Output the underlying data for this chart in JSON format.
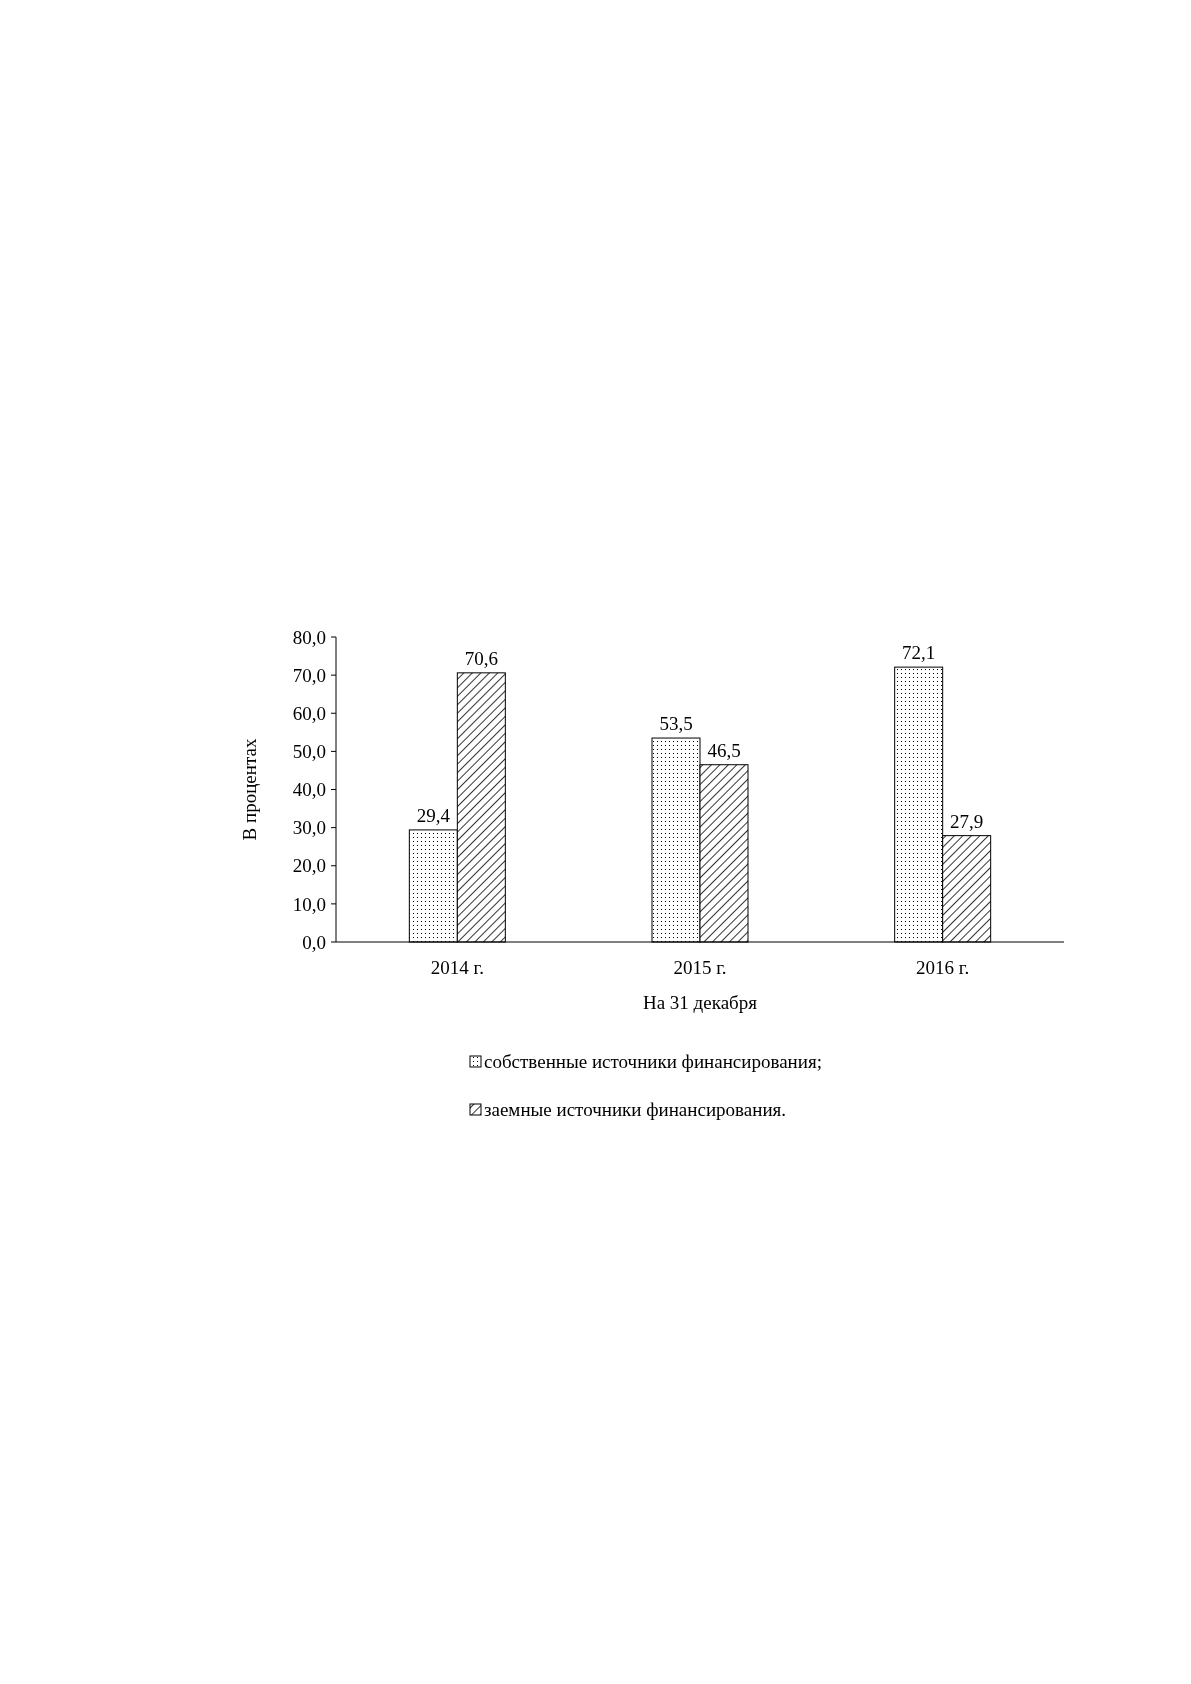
{
  "chart_data": {
    "type": "bar",
    "xlabel": "На 31 декабря",
    "ylabel": "В процентах",
    "categories": [
      "2014 г.",
      "2015 г.",
      "2016 г."
    ],
    "series": [
      {
        "name": "собственные источники финансирования;",
        "color": "#000000",
        "values": [
          29.4,
          53.5,
          72.1
        ],
        "value_labels": [
          "29,4",
          "53,5",
          "72,1"
        ]
      },
      {
        "name": "заемные источники финансирования.",
        "color": "#000000",
        "values": [
          70.6,
          46.5,
          27.9
        ],
        "value_labels": [
          "70,6",
          "46,5",
          "27,9"
        ]
      }
    ],
    "ylim": [
      0,
      80
    ],
    "yticks": [
      {
        "value": 0,
        "label": "0,0"
      },
      {
        "value": 10,
        "label": "10,0"
      },
      {
        "value": 20,
        "label": "20,0"
      },
      {
        "value": 30,
        "label": "30,0"
      },
      {
        "value": 40,
        "label": "40,0"
      },
      {
        "value": 50,
        "label": "50,0"
      },
      {
        "value": 60,
        "label": "60,0"
      },
      {
        "value": 70,
        "label": "70,0"
      },
      {
        "value": 80,
        "label": "80,0"
      }
    ],
    "legend": "bottom"
  }
}
